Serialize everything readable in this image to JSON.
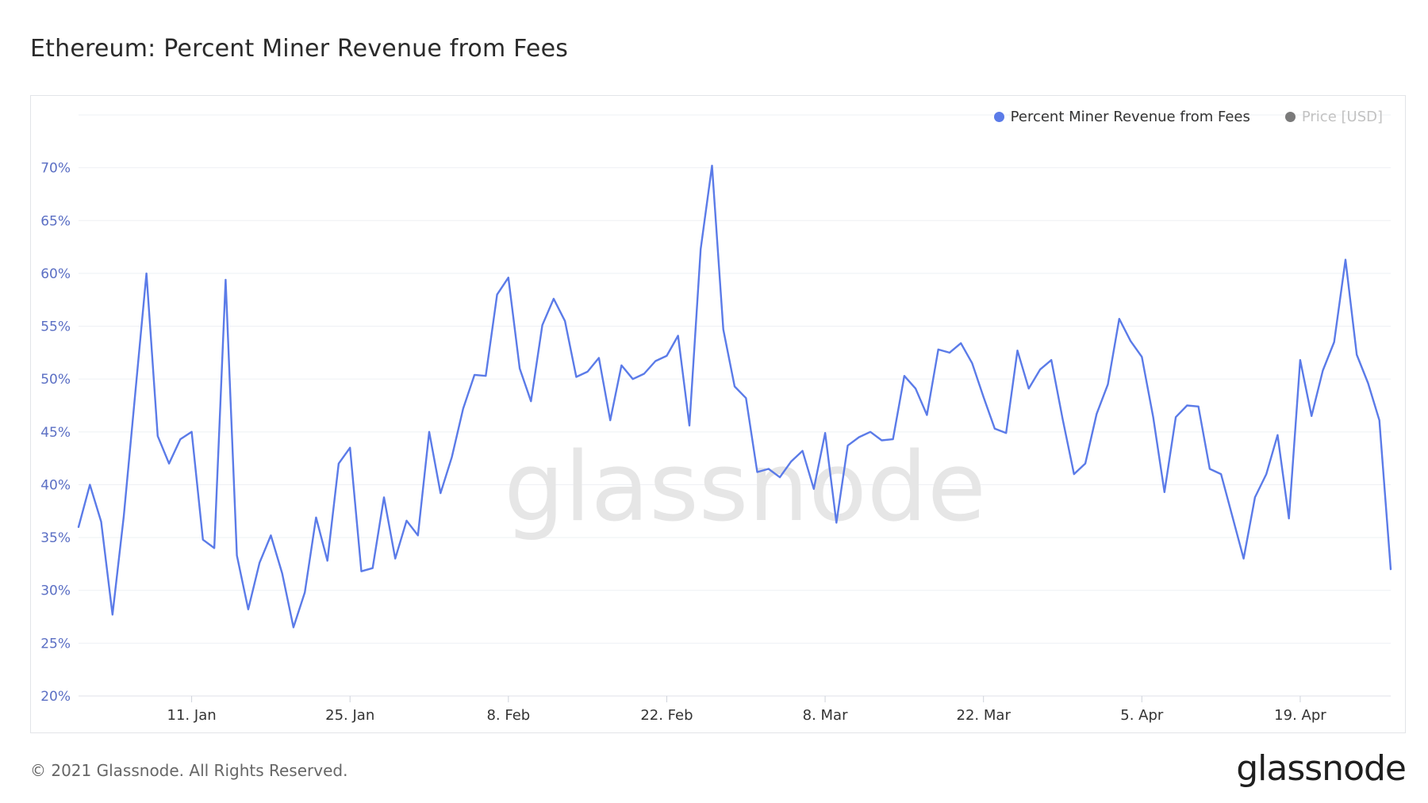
{
  "title": "Ethereum: Percent Miner Revenue from Fees",
  "legend": {
    "series_label": "Percent Miner Revenue from Fees",
    "price_label": "Price [USD]"
  },
  "watermark": "glassnode",
  "footer": {
    "copyright": "© 2021 Glassnode. All Rights Reserved.",
    "logo": "glassnode"
  },
  "colors": {
    "series": "#5b7be8",
    "price_dot": "#7a7a7a",
    "axis_text": "#5b6fc4",
    "grid": "#eef0f4"
  },
  "chart_data": {
    "type": "line",
    "title": "Ethereum: Percent Miner Revenue from Fees",
    "ylim": [
      20,
      75
    ],
    "y_ticks": [
      "20%",
      "25%",
      "30%",
      "35%",
      "40%",
      "45%",
      "50%",
      "55%",
      "60%",
      "65%",
      "70%"
    ],
    "x_ticks": [
      {
        "label": "11. Jan",
        "index": 10
      },
      {
        "label": "25. Jan",
        "index": 24
      },
      {
        "label": "8. Feb",
        "index": 38
      },
      {
        "label": "22. Feb",
        "index": 52
      },
      {
        "label": "8. Mar",
        "index": 66
      },
      {
        "label": "22. Mar",
        "index": 80
      },
      {
        "label": "5. Apr",
        "index": 94
      },
      {
        "label": "19. Apr",
        "index": 108
      }
    ],
    "x_start": "2021-01-01",
    "series": [
      {
        "name": "Percent Miner Revenue from Fees",
        "values": [
          36,
          40,
          36.5,
          27.7,
          37,
          48.5,
          60,
          44.6,
          42,
          44.3,
          45,
          34.8,
          34,
          59.4,
          33.3,
          28.2,
          32.6,
          35.2,
          31.6,
          26.5,
          29.8,
          36.9,
          32.8,
          42,
          43.5,
          31.8,
          32.1,
          38.8,
          33,
          36.6,
          35.2,
          45,
          39.2,
          42.6,
          47.2,
          50.4,
          50.3,
          58,
          59.6,
          51,
          47.9,
          55.1,
          57.6,
          55.5,
          50.2,
          50.7,
          52,
          46.1,
          51.3,
          50,
          50.5,
          51.7,
          52.2,
          54.1,
          45.6,
          62.3,
          70.2,
          54.7,
          49.3,
          48.2,
          41.2,
          41.5,
          40.7,
          42.2,
          43.2,
          39.6,
          44.9,
          36.4,
          43.7,
          44.5,
          45,
          44.2,
          44.3,
          50.3,
          49.1,
          46.6,
          52.8,
          52.5,
          53.4,
          51.5,
          48.3,
          45.3,
          44.9,
          52.7,
          49.1,
          50.9,
          51.8,
          46.2,
          41,
          42,
          46.7,
          49.5,
          55.7,
          53.6,
          52.1,
          46.4,
          39.3,
          46.4,
          47.5,
          47.4,
          41.5,
          41,
          37,
          33,
          38.8,
          41,
          44.7,
          36.8,
          51.8,
          46.5,
          50.8,
          53.5,
          61.3,
          52.3,
          49.6,
          46.1,
          32
        ]
      }
    ]
  }
}
